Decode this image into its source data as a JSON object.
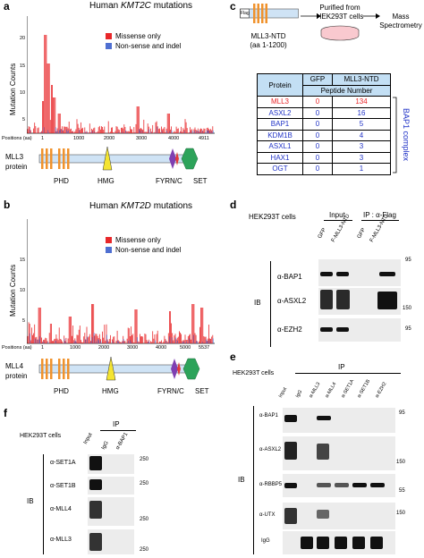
{
  "colors": {
    "missense": "#e8272a",
    "nonsense": "#4f6fd1",
    "phd": "#f0922b",
    "hmg": "#f4e431",
    "fyrn": "#7f3fb2",
    "fyrc": "#e23a3a",
    "set": "#2da35a",
    "bar": "#cfe3f5",
    "highlight": "#c3dff4",
    "blue_text": "#2234c7",
    "red_text": "#e8272a"
  },
  "panels": {
    "a": "a",
    "b": "b",
    "c": "c",
    "d": "d",
    "e": "e",
    "f": "f"
  },
  "a": {
    "title_prefix": "Human ",
    "gene": "KMT2C",
    "title_suffix": " mutations",
    "ylabel": "Mutation Counts",
    "legend": [
      "Missense only",
      "Non-sense and indel"
    ],
    "yticks": [
      "20",
      "15",
      "10",
      "5"
    ],
    "xlabel": "Positions (aa)",
    "xticks": [
      "1",
      "1000",
      "2000",
      "3000",
      "4000",
      "4911"
    ],
    "protein": "MLL3",
    "protein2": "protein",
    "domains": [
      "PHD",
      "HMG",
      "FYRN/C",
      "SET"
    ]
  },
  "b": {
    "title_prefix": "Human ",
    "gene": "KMT2D",
    "title_suffix": " mutations",
    "ylabel": "Mutation Counts",
    "legend": [
      "Missense only",
      "Non-sense and indel"
    ],
    "yticks": [
      "15",
      "10",
      "5"
    ],
    "xlabel": "Positions (aa)",
    "xticks": [
      "1",
      "1000",
      "2000",
      "3000",
      "4000",
      "5000",
      "5537"
    ],
    "protein": "MLL4",
    "protein2": "protein",
    "domains": [
      "PHD",
      "HMG",
      "FYRN/C",
      "SET"
    ]
  },
  "c": {
    "flag": "Flag",
    "construct": "MLL3-NTD",
    "construct_range": "(aa 1-1200)",
    "purified": "Purified from",
    "purified2": "HEK293T cells",
    "mass": "Mass",
    "mass2": "Spectrometry",
    "col_protein": "Protein",
    "col_gfp": "GFP",
    "col_ntd": "MLL3-NTD",
    "col_peptide": "Peptide Number",
    "rows": [
      {
        "protein": "MLL3",
        "gfp": "0",
        "ntd": "134"
      },
      {
        "protein": "ASXL2",
        "gfp": "0",
        "ntd": "16"
      },
      {
        "protein": "BAP1",
        "gfp": "0",
        "ntd": "5"
      },
      {
        "protein": "KDM1B",
        "gfp": "0",
        "ntd": "4"
      },
      {
        "protein": "ASXL1",
        "gfp": "0",
        "ntd": "3"
      },
      {
        "protein": "HAX1",
        "gfp": "0",
        "ntd": "3"
      },
      {
        "protein": "OGT",
        "gfp": "0",
        "ntd": "1"
      }
    ],
    "complex": "BAP1 complex"
  },
  "d": {
    "cells": "HEK293T cells",
    "input": "Input",
    "ip": "IP : α-Flag",
    "lanes": [
      "GFP",
      "F-MLL3-NTD",
      "GFP",
      "F-MLL3-NTD"
    ],
    "ib": "IB",
    "blots": [
      "α-BAP1",
      "α-ASXL2",
      "α-EZH2"
    ],
    "markers": [
      "95",
      "150",
      "95"
    ]
  },
  "e": {
    "cells": "HEK293T cells",
    "ip": "IP",
    "lanes": [
      "Input",
      "IgG",
      "α-MLL3",
      "α-MLL4",
      "α-SET1A",
      "α-SET1B",
      "α-EZH2"
    ],
    "ib": "IB",
    "blots": [
      "α-BAP1",
      "α-ASXL2",
      "α-RBBP5",
      "α-UTX",
      "IgG"
    ],
    "markers": [
      "95",
      "150",
      "55",
      "150"
    ]
  },
  "f": {
    "cells": "HEK293T cells",
    "ip": "IP",
    "lanes": [
      "Input",
      "IgG",
      "α-BAP1"
    ],
    "ib": "IB",
    "blots": [
      "α-SET1A",
      "α-SET1B",
      "α-MLL4",
      "α-MLL3"
    ],
    "markers": [
      "250",
      "250",
      "250",
      "250"
    ]
  }
}
